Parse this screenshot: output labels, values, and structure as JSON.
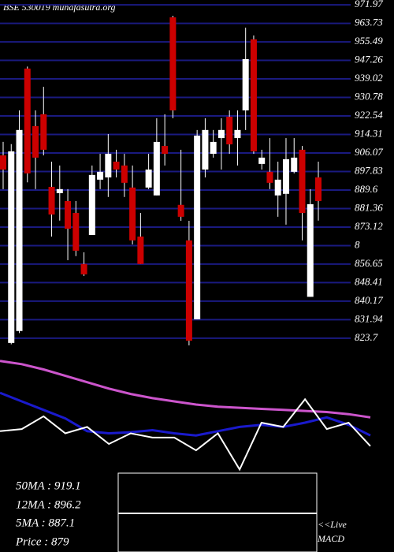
{
  "chart_data": {
    "type": "candlestick",
    "title": "BSE 530019 munafasutra.org",
    "ylim": [
      820.5,
      974.1
    ],
    "yticks": [
      823.7,
      831.94,
      840.17,
      848.41,
      856.65,
      {
        "value": 864.88,
        "label": "8"
      },
      873.12,
      881.36,
      889.6,
      897.83,
      906.07,
      914.31,
      922.54,
      930.78,
      939.02,
      947.26,
      955.49,
      963.73,
      971.97
    ],
    "grid": true,
    "up_color": "#ffffff",
    "down_color": "#cc0000",
    "grid_color": "#1a1a80",
    "candles": [
      {
        "open": 905.0,
        "high": 911.0,
        "low": 890.0,
        "close": 898.7
      },
      {
        "open": 821.6,
        "high": 910.0,
        "low": 821.0,
        "close": 906.8
      },
      {
        "open": 826.9,
        "high": 925.0,
        "low": 826.0,
        "close": 916.3
      },
      {
        "open": 943.6,
        "high": 944.5,
        "low": 893.0,
        "close": 897.0
      },
      {
        "open": 918.0,
        "high": 925.0,
        "low": 890.0,
        "close": 904.0
      },
      {
        "open": 923.3,
        "high": 935.5,
        "low": 905.0,
        "close": 907.5
      },
      {
        "open": 891.0,
        "high": 902.2,
        "low": 868.9,
        "close": 878.7
      },
      {
        "open": 888.2,
        "high": 900.5,
        "low": 876.0,
        "close": 890.0
      },
      {
        "open": 884.7,
        "high": 890.0,
        "low": 858.4,
        "close": 872.4
      },
      {
        "open": 879.4,
        "high": 884.7,
        "low": 860.2,
        "close": 862.6
      },
      {
        "open": 856.7,
        "high": 861.9,
        "low": 851.4,
        "close": 852.1
      },
      {
        "open": 869.6,
        "high": 900.5,
        "low": 869.6,
        "close": 896.3
      },
      {
        "open": 894.2,
        "high": 905.7,
        "low": 890.0,
        "close": 897.7
      },
      {
        "open": 895.2,
        "high": 914.5,
        "low": 886.5,
        "close": 905.7
      },
      {
        "open": 902.2,
        "high": 907.5,
        "low": 895.2,
        "close": 898.7
      },
      {
        "open": 900.5,
        "high": 905.7,
        "low": 886.5,
        "close": 892.8
      },
      {
        "open": 890.7,
        "high": 900.5,
        "low": 865.4,
        "close": 867.2
      },
      {
        "open": 868.9,
        "high": 879.4,
        "low": 856.7,
        "close": 856.7
      },
      {
        "open": 890.7,
        "high": 905.7,
        "low": 890.0,
        "close": 898.7
      },
      {
        "open": 887.2,
        "high": 921.5,
        "low": 887.2,
        "close": 911.0
      },
      {
        "open": 909.2,
        "high": 923.3,
        "low": 900.5,
        "close": 905.7
      },
      {
        "open": 966.4,
        "high": 967.1,
        "low": 921.5,
        "close": 925.0
      },
      {
        "open": 883.0,
        "high": 907.5,
        "low": 875.9,
        "close": 877.7
      },
      {
        "open": 867.2,
        "high": 875.9,
        "low": 820.5,
        "close": 822.6
      },
      {
        "open": 832.1,
        "high": 916.3,
        "low": 832.1,
        "close": 913.8
      },
      {
        "open": 898.7,
        "high": 921.5,
        "low": 895.2,
        "close": 916.3
      },
      {
        "open": 905.7,
        "high": 916.3,
        "low": 904.0,
        "close": 911.0
      },
      {
        "open": 912.7,
        "high": 921.5,
        "low": 898.7,
        "close": 916.3
      },
      {
        "open": 922.2,
        "high": 925.0,
        "low": 905.7,
        "close": 909.9
      },
      {
        "open": 912.7,
        "high": 925.0,
        "low": 900.5,
        "close": 916.3
      },
      {
        "open": 925.0,
        "high": 961.8,
        "low": 916.3,
        "close": 947.8
      },
      {
        "open": 956.6,
        "high": 958.3,
        "low": 905.7,
        "close": 906.8
      },
      {
        "open": 901.2,
        "high": 907.5,
        "low": 898.7,
        "close": 904.0
      },
      {
        "open": 897.7,
        "high": 912.7,
        "low": 890.0,
        "close": 892.8
      },
      {
        "open": 887.2,
        "high": 902.2,
        "low": 877.7,
        "close": 894.2
      },
      {
        "open": 887.9,
        "high": 912.7,
        "low": 874.2,
        "close": 903.3
      },
      {
        "open": 897.7,
        "high": 912.7,
        "low": 897.0,
        "close": 904.0
      },
      {
        "open": 907.5,
        "high": 909.2,
        "low": 867.2,
        "close": 879.4
      },
      {
        "open": 842.1,
        "high": 890.0,
        "low": 842.1,
        "close": 883.3
      },
      {
        "open": 895.2,
        "high": 902.2,
        "low": 876.0,
        "close": 884.7
      }
    ],
    "indicators": {
      "ylim": [
        0,
        100
      ],
      "series": [
        {
          "color": "#cc55cc",
          "values": [
            98,
            95,
            90,
            84,
            78,
            72,
            67,
            63,
            60,
            57,
            55,
            54,
            53,
            52,
            51,
            50,
            48,
            45
          ]
        },
        {
          "color": "#1a1acc",
          "values": [
            68,
            60,
            52,
            44,
            32,
            30,
            31,
            33,
            30,
            28,
            32,
            36,
            38,
            36,
            40,
            45,
            38,
            28
          ]
        },
        {
          "color": "#ffffff",
          "values": [
            32,
            34,
            46,
            30,
            36,
            20,
            30,
            26,
            26,
            14,
            30,
            -4,
            40,
            36,
            62,
            34,
            40,
            18
          ]
        }
      ]
    },
    "info_labels": [
      "50MA : 919.1",
      "12MA : 896.2",
      "5MA : 887.1",
      "Price   : 879"
    ],
    "macd_label": [
      "<<Live",
      "MACD"
    ]
  }
}
